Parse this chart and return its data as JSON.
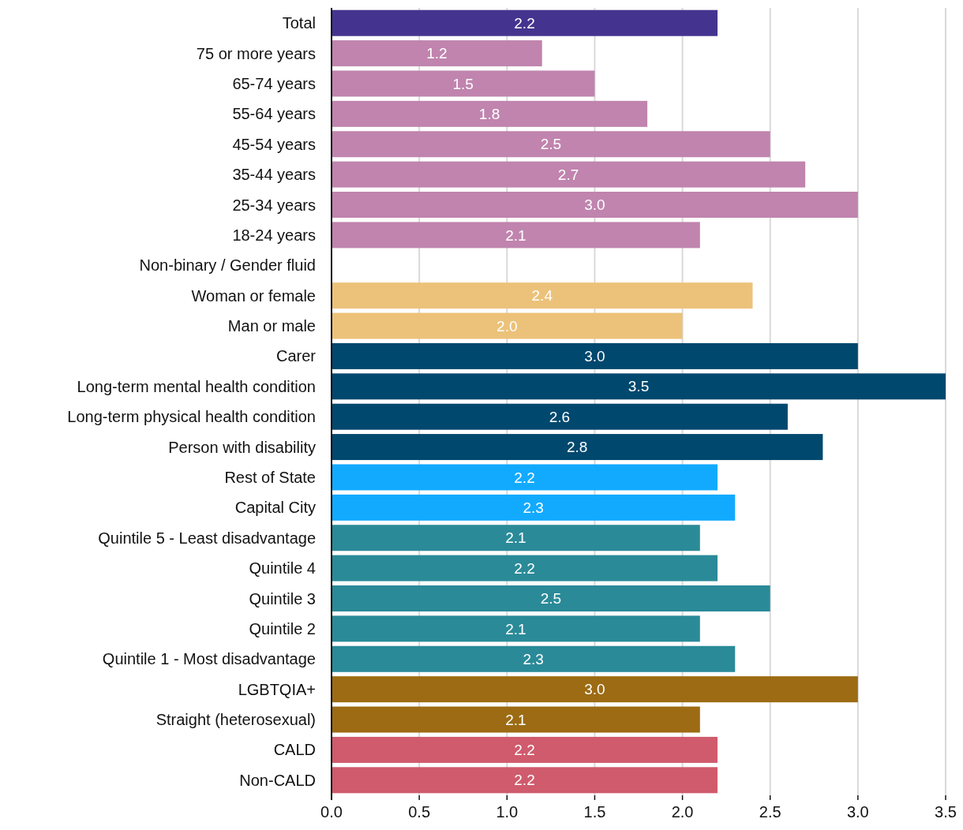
{
  "chart_data": {
    "type": "bar",
    "orientation": "horizontal",
    "categories": [
      "Total",
      "75 or more years",
      "65-74 years",
      "55-64 years",
      "45-54 years",
      "35-44 years",
      "25-34 years",
      "18-24 years",
      "Non-binary / Gender fluid",
      "Woman or female",
      "Man or male",
      "Carer",
      "Long-term mental health condition",
      "Long-term physical health condition",
      "Person with disability",
      "Rest of State",
      "Capital City",
      "Quintile 5 - Least disadvantage",
      "Quintile 4",
      "Quintile 3",
      "Quintile 2",
      "Quintile 1 - Most disadvantage",
      "LGBTQIA+",
      "Straight (heterosexual)",
      "CALD",
      "Non-CALD"
    ],
    "values": [
      2.2,
      1.2,
      1.5,
      1.8,
      2.5,
      2.7,
      3.0,
      2.1,
      null,
      2.4,
      2.0,
      3.0,
      3.5,
      2.6,
      2.8,
      2.2,
      2.3,
      2.1,
      2.2,
      2.5,
      2.1,
      2.3,
      3.0,
      2.1,
      2.2,
      2.2
    ],
    "colors": [
      "#44348f",
      "#c084ae",
      "#c084ae",
      "#c084ae",
      "#c084ae",
      "#c084ae",
      "#c084ae",
      "#c084ae",
      null,
      "#ecc27a",
      "#ecc27a",
      "#00486e",
      "#00486e",
      "#00486e",
      "#00486e",
      "#12aaff",
      "#12aaff",
      "#2a8a98",
      "#2a8a98",
      "#2a8a98",
      "#2a8a98",
      "#2a8a98",
      "#9c6b14",
      "#9c6b14",
      "#cf5b6c",
      "#cf5b6c"
    ],
    "xlim": [
      0,
      3.5
    ],
    "xticks": [
      {
        "value": 0,
        "label": "0.0"
      },
      {
        "value": 0.5,
        "label": "0.5"
      },
      {
        "value": 1,
        "label": "1.0"
      },
      {
        "value": 1.5,
        "label": "1.5"
      },
      {
        "value": 2,
        "label": "2.0"
      },
      {
        "value": 2.5,
        "label": "2.5"
      },
      {
        "value": 3,
        "label": "3.0"
      },
      {
        "value": 3.5,
        "label": "3.5"
      }
    ],
    "value_labels": [
      "2.2",
      "1.2",
      "1.5",
      "1.8",
      "2.5",
      "2.7",
      "3.0",
      "2.1",
      null,
      "2.4",
      "2.0",
      "3.0",
      "3.5",
      "2.6",
      "2.8",
      "2.2",
      "2.3",
      "2.1",
      "2.2",
      "2.5",
      "2.1",
      "2.3",
      "3.0",
      "2.1",
      "2.2",
      "2.2"
    ],
    "grid": "x"
  }
}
